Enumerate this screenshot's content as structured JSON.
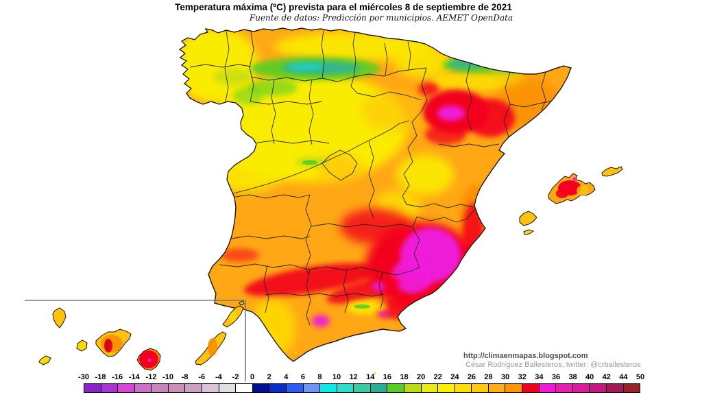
{
  "header": {
    "title": "Temperatura máxima (ºC) prevista para el miércoles 8 de septiembre de 2021",
    "subtitle": "Fuente de datos: Predicción por municipios. AEMET OpenData"
  },
  "attribution": {
    "url": "http://climaenmapas.blogspot.com",
    "credit": "César Rodríguez Ballesteros, twitter: @crballesteros"
  },
  "legend": {
    "unit": "ºC",
    "tick_labels": [
      "-30",
      "-18",
      "-16",
      "-14",
      "-12",
      "-10",
      "-8",
      "-6",
      "-4",
      "-2",
      "0",
      "2",
      "4",
      "6",
      "8",
      "10",
      "12",
      "14",
      "16",
      "18",
      "20",
      "22",
      "24",
      "26",
      "28",
      "30",
      "32",
      "34",
      "36",
      "38",
      "40",
      "42",
      "44",
      "50"
    ],
    "segment_colors": [
      "#8d22cc",
      "#a934d2",
      "#d844d8",
      "#cc6fc6",
      "#c983bd",
      "#c78fba",
      "#cba1c1",
      "#d9c4d5",
      "#e0dee1",
      "#ffffff",
      "#001090",
      "#0a2cc8",
      "#2e5cf0",
      "#6e94f8",
      "#0de9e9",
      "#2eddc9",
      "#3ecaa0",
      "#2aae97",
      "#57ce25",
      "#b9dc16",
      "#e9e91c",
      "#fcf000",
      "#ffdf06",
      "#ffc90f",
      "#ffae1a",
      "#fc9500",
      "#f2001e",
      "#f01ad8",
      "#ea1cb4",
      "#dc1a9a",
      "#c41880",
      "#a21a58",
      "#97222a"
    ]
  },
  "palette": {
    "orange": "#ffa715",
    "amber": "#ffc20f",
    "gold": "#ffd906",
    "yellow": "#faec00",
    "yellow_green": "#b9dc16",
    "green": "#57ce25",
    "teal": "#2fb49b",
    "cyan": "#15dcd2",
    "dark_orange": "#fb8d00",
    "red": "#f2001e",
    "magenta": "#ef1cd8",
    "dark_red": "#c00d16",
    "inset_line": "#7a7a7a"
  }
}
